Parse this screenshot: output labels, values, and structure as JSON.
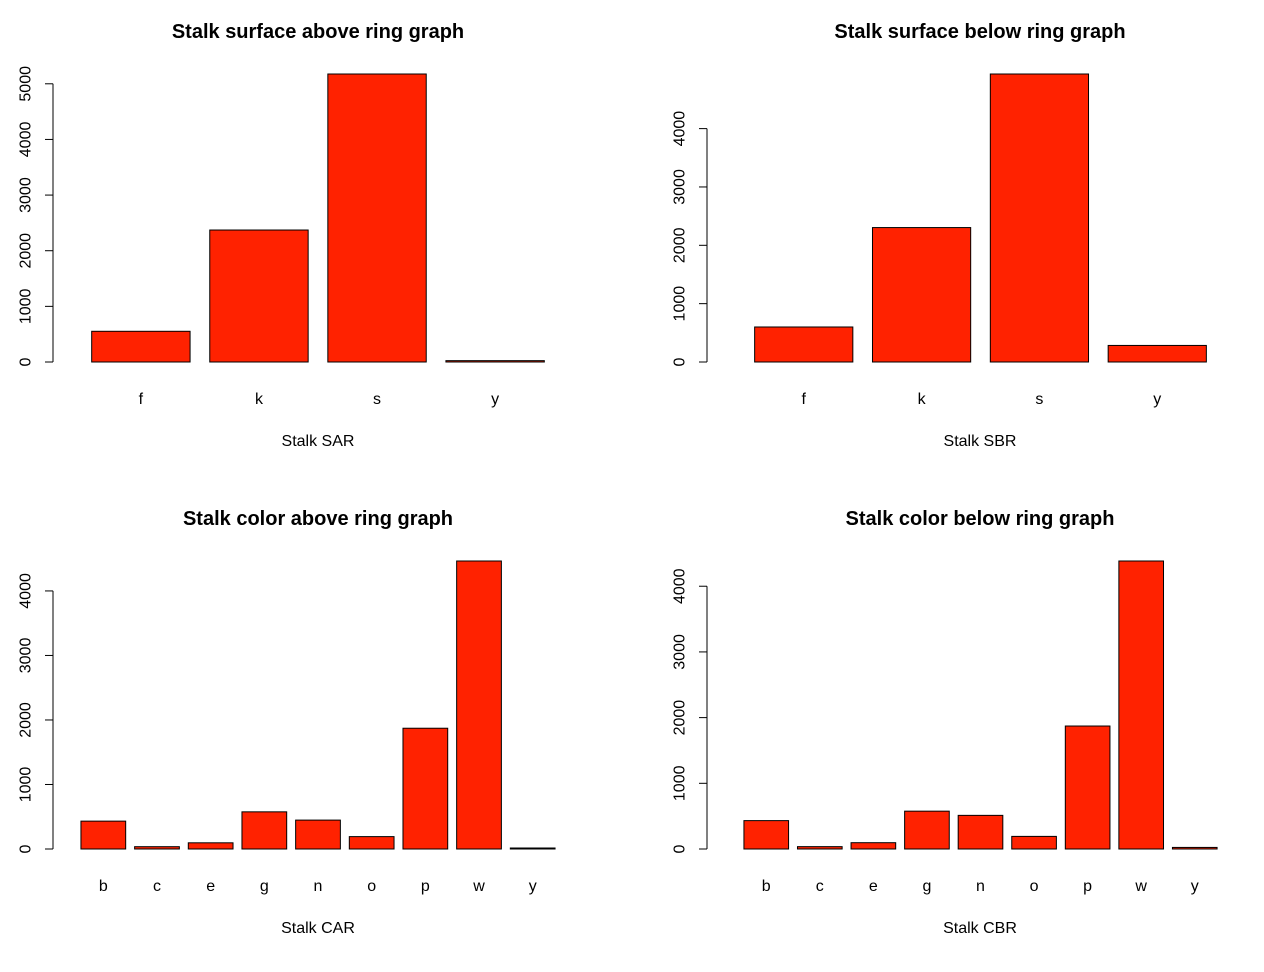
{
  "colors": {
    "bar": "#ff2200",
    "stroke": "#000000"
  },
  "chart_data": [
    {
      "type": "bar",
      "title": "Stalk surface above ring graph",
      "xlabel": "Stalk SAR",
      "ylabel": "",
      "categories": [
        "f",
        "k",
        "s",
        "y"
      ],
      "values": [
        552,
        2372,
        5176,
        24
      ],
      "ylim": [
        0,
        5176
      ],
      "yticks": [
        0,
        1000,
        2000,
        3000,
        4000,
        5000
      ]
    },
    {
      "type": "bar",
      "title": "Stalk surface below ring graph",
      "xlabel": "Stalk SBR",
      "ylabel": "",
      "categories": [
        "f",
        "k",
        "s",
        "y"
      ],
      "values": [
        600,
        2304,
        4936,
        284
      ],
      "ylim": [
        0,
        4936
      ],
      "yticks": [
        0,
        1000,
        2000,
        3000,
        4000
      ]
    },
    {
      "type": "bar",
      "title": "Stalk color above ring graph",
      "xlabel": "Stalk CAR",
      "ylabel": "",
      "categories": [
        "b",
        "c",
        "e",
        "g",
        "n",
        "o",
        "p",
        "w",
        "y"
      ],
      "values": [
        432,
        36,
        96,
        576,
        448,
        192,
        1872,
        4464,
        8
      ],
      "ylim": [
        0,
        4464
      ],
      "yticks": [
        0,
        1000,
        2000,
        3000,
        4000
      ]
    },
    {
      "type": "bar",
      "title": "Stalk color below ring graph",
      "xlabel": "Stalk CBR",
      "ylabel": "",
      "categories": [
        "b",
        "c",
        "e",
        "g",
        "n",
        "o",
        "p",
        "w",
        "y"
      ],
      "values": [
        432,
        36,
        96,
        576,
        512,
        192,
        1872,
        4384,
        24
      ],
      "ylim": [
        0,
        4384
      ],
      "yticks": [
        0,
        1000,
        2000,
        3000,
        4000
      ]
    }
  ]
}
